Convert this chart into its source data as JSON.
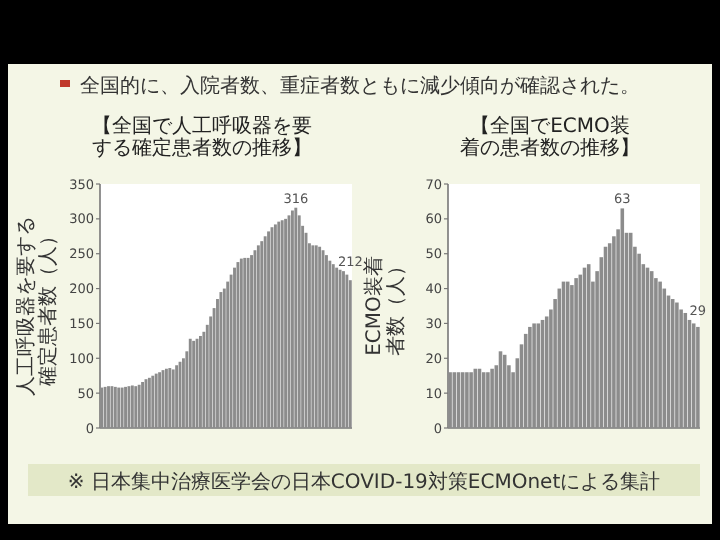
{
  "chart_data": [
    {
      "type": "bar",
      "title": "【全国で人工呼吸器を要する確定患者数の推移】",
      "ylabel": "人工呼吸器を要する確定患者数（人）",
      "annotations": [
        "全国的に、入院者数、重症者数ともに減少傾向が確認された。"
      ],
      "color": "#8c8c8c",
      "ylim": [
        0,
        350
      ],
      "yticks": [
        0,
        50,
        100,
        150,
        200,
        250,
        300,
        350
      ],
      "grid": false,
      "categories": [
        null,
        null,
        null,
        null,
        null,
        null,
        null,
        null,
        null,
        null,
        null,
        null,
        null,
        null,
        null,
        null,
        null,
        null,
        null,
        null,
        null,
        null,
        null,
        null,
        null,
        null,
        null,
        null,
        null,
        null,
        null,
        null,
        null,
        null,
        null,
        null,
        null,
        null,
        null,
        null,
        null,
        null,
        null,
        null,
        null,
        null,
        null,
        null,
        null,
        null,
        null,
        null,
        null,
        null,
        null,
        null,
        null,
        null,
        null,
        null,
        null,
        null,
        null,
        null,
        null,
        null,
        null,
        null,
        null,
        null,
        null,
        null,
        null,
        null
      ],
      "values": [
        58,
        59,
        60,
        60,
        59,
        58,
        58,
        59,
        60,
        61,
        60,
        62,
        66,
        70,
        72,
        75,
        78,
        80,
        83,
        85,
        86,
        84,
        90,
        95,
        100,
        110,
        128,
        125,
        128,
        132,
        138,
        148,
        160,
        172,
        185,
        195,
        200,
        210,
        220,
        230,
        238,
        243,
        244,
        244,
        248,
        255,
        262,
        268,
        275,
        282,
        288,
        292,
        296,
        298,
        300,
        305,
        312,
        316,
        305,
        290,
        280,
        265,
        262,
        262,
        260,
        255,
        248,
        240,
        235,
        230,
        227,
        225,
        220,
        212
      ],
      "value_labels": [
        null,
        null,
        null,
        null,
        null,
        null,
        null,
        null,
        null,
        null,
        null,
        null,
        null,
        null,
        null,
        null,
        null,
        null,
        null,
        null,
        null,
        null,
        null,
        null,
        null,
        null,
        null,
        null,
        null,
        null,
        null,
        null,
        null,
        null,
        null,
        null,
        null,
        null,
        null,
        null,
        null,
        null,
        null,
        null,
        null,
        null,
        null,
        null,
        null,
        null,
        null,
        null,
        null,
        null,
        null,
        null,
        null,
        "316",
        null,
        null,
        null,
        null,
        null,
        null,
        null,
        null,
        null,
        null,
        null,
        null,
        null,
        null,
        null,
        "212"
      ]
    },
    {
      "type": "bar",
      "title": "【全国でECMO装着の患者数の推移】",
      "ylabel": "ECMO装着者数（人）",
      "annotations": [
        "※ 日本集中治療医学会の日本COVID-19対策ECMOnetによる集計"
      ],
      "color": "#8c8c8c",
      "ylim": [
        0,
        70
      ],
      "yticks": [
        0,
        10,
        20,
        30,
        40,
        50,
        60,
        70
      ],
      "grid": false,
      "categories": [
        null,
        null,
        null,
        null,
        null,
        null,
        null,
        null,
        null,
        null,
        null,
        null,
        null,
        null,
        null,
        null,
        null,
        null,
        null,
        null,
        null,
        null,
        null,
        null,
        null,
        null,
        null,
        null,
        null,
        null,
        null,
        null,
        null,
        null,
        null,
        null,
        null,
        null,
        null,
        null,
        null,
        null,
        null,
        null,
        null,
        null,
        null,
        null,
        null,
        null,
        null,
        null,
        null,
        null,
        null,
        null,
        null,
        null,
        null,
        null
      ],
      "values": [
        16,
        16,
        16,
        16,
        16,
        16,
        17,
        17,
        16,
        16,
        17,
        18,
        22,
        21,
        18,
        16,
        20,
        24,
        27,
        29,
        30,
        30,
        31,
        32,
        34,
        37,
        40,
        42,
        42,
        41,
        43,
        44,
        46,
        47,
        42,
        45,
        49,
        52,
        53,
        55,
        57,
        63,
        56,
        56,
        52,
        50,
        47,
        46,
        45,
        43,
        42,
        40,
        38,
        37,
        36,
        34,
        33,
        31,
        30,
        29
      ],
      "value_labels": [
        null,
        null,
        null,
        null,
        null,
        null,
        null,
        null,
        null,
        null,
        null,
        null,
        null,
        null,
        null,
        null,
        null,
        null,
        null,
        null,
        null,
        null,
        null,
        null,
        null,
        null,
        null,
        null,
        null,
        null,
        null,
        null,
        null,
        null,
        null,
        null,
        null,
        null,
        null,
        null,
        null,
        "63",
        null,
        null,
        null,
        null,
        null,
        null,
        null,
        null,
        null,
        null,
        null,
        null,
        null,
        null,
        null,
        null,
        null,
        "29"
      ]
    }
  ]
}
